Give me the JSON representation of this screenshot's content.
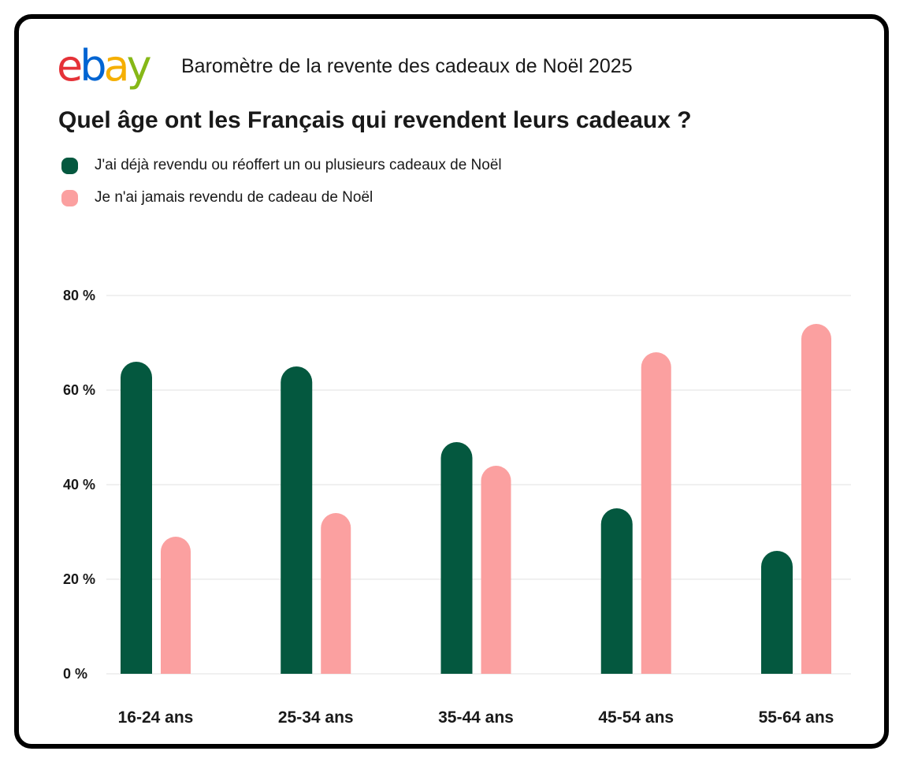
{
  "header": {
    "logo_text": "ebay",
    "logo_colors": [
      "#e53238",
      "#0064d2",
      "#f5af02",
      "#86b817"
    ],
    "subtitle": "Baromètre de la revente des cadeaux de Noël 2025"
  },
  "chart_data": {
    "type": "bar",
    "title": "Quel âge ont les Français qui revendent leurs cadeaux ?",
    "categories": [
      "16-24 ans",
      "25-34 ans",
      "35-44 ans",
      "45-54 ans",
      "55-64 ans"
    ],
    "series": [
      {
        "name": "J'ai déjà revendu ou réoffert un ou plusieurs cadeaux de Noël",
        "color": "#04583f",
        "values": [
          66,
          65,
          49,
          35,
          26
        ]
      },
      {
        "name": "Je n'ai jamais revendu de cadeau de Noël",
        "color": "#fba0a0",
        "values": [
          29,
          34,
          44,
          68,
          74
        ]
      }
    ],
    "yticks": [
      0,
      20,
      40,
      60,
      80
    ],
    "ytick_labels": [
      "0 %",
      "20 %",
      "40 %",
      "60 %",
      "80 %"
    ],
    "ylim": [
      0,
      80
    ],
    "xlabel": "",
    "ylabel": "",
    "grid": true,
    "legend_position": "top-left"
  }
}
